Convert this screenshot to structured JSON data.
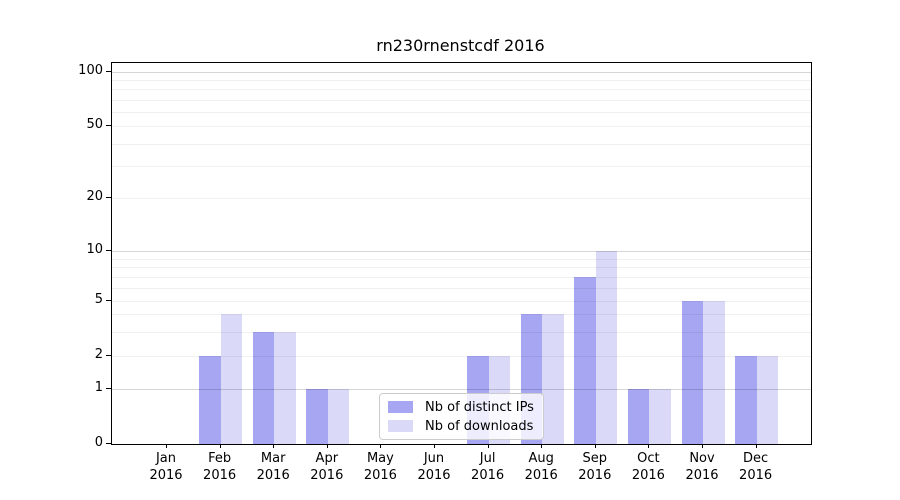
{
  "title": "rn230rnenstcdf 2016",
  "chart_data": {
    "type": "bar",
    "title": "rn230rnenstcdf 2016",
    "categories": [
      "Jan",
      "Feb",
      "Mar",
      "Apr",
      "May",
      "Jun",
      "Jul",
      "Aug",
      "Sep",
      "Oct",
      "Nov",
      "Dec"
    ],
    "x_tick_year": "2016",
    "series": [
      {
        "name": "Nb of distinct IPs",
        "color": "#a6a6f2",
        "values": [
          0,
          2,
          3,
          1,
          0,
          0,
          2,
          4,
          7,
          1,
          5,
          2
        ]
      },
      {
        "name": "Nb of downloads",
        "color": "#dadaf8",
        "values": [
          0,
          4,
          3,
          1,
          0,
          0,
          2,
          4,
          10,
          1,
          5,
          2
        ]
      }
    ],
    "yticks": [
      0,
      1,
      2,
      5,
      10,
      20,
      50,
      100
    ],
    "ylim": [
      0,
      112
    ],
    "yscale": "log (with 0 baseline)",
    "grid": "horizontal major and minor gridlines",
    "legend": {
      "position": "lower center",
      "labels": [
        "Nb of distinct IPs",
        "Nb of downloads"
      ]
    }
  }
}
